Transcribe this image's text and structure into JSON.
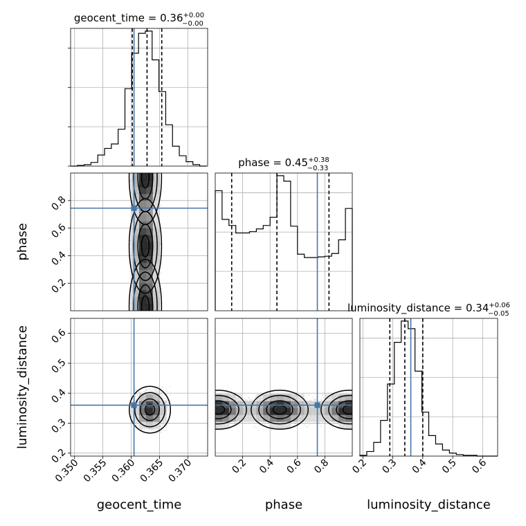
{
  "chart_data": {
    "type": "corner",
    "parameters": [
      "geocent_time",
      "phase",
      "luminosity_distance"
    ],
    "truths": [
      0.3605,
      0.745,
      0.36
    ],
    "truth_color": "#4477aa",
    "axis_ranges": {
      "geocent_time": [
        0.3493,
        0.3735
      ],
      "phase": [
        0.0,
        1.0
      ],
      "luminosity_distance": [
        0.19,
        0.65
      ]
    },
    "ticks": {
      "geocent_time": {
        "values": [
          0.35,
          0.355,
          0.36,
          0.365,
          0.37
        ],
        "labels": [
          "0.350",
          "0.355",
          "0.360",
          "0.365",
          "0.370"
        ]
      },
      "phase": {
        "values": [
          0.2,
          0.4,
          0.6,
          0.8
        ],
        "labels": [
          "0.2",
          "0.4",
          "0.6",
          "0.8"
        ]
      },
      "luminosity_distance": {
        "values": [
          0.2,
          0.3,
          0.4,
          0.5,
          0.6
        ],
        "labels": [
          "0.2",
          "0.3",
          "0.4",
          "0.5",
          "0.6"
        ]
      }
    },
    "titles": {
      "geocent_time": {
        "prefix": "geocent_time = 0.36",
        "up": "+0.00",
        "down": "−0.00"
      },
      "phase": {
        "prefix": "phase = 0.45",
        "up": "+0.38",
        "down": "−0.33"
      },
      "luminosity_distance": {
        "prefix": "luminosity_distance = 0.34",
        "up": "+0.06",
        "down": "−0.05"
      }
    },
    "xlabels": [
      "geocent_time",
      "phase",
      "luminosity_distance"
    ],
    "ylabels": [
      "phase",
      "luminosity_distance"
    ],
    "histograms": {
      "geocent_time": {
        "edges": [
          0.3493,
          0.3505,
          0.3517,
          0.3529,
          0.3541,
          0.3553,
          0.3565,
          0.3577,
          0.3589,
          0.3601,
          0.3613,
          0.3625,
          0.3637,
          0.3649,
          0.3661,
          0.3673,
          0.3685,
          0.3697,
          0.3709,
          0.3721,
          0.3733
        ],
        "counts": [
          0,
          1,
          2,
          5,
          15,
          24,
          30,
          50,
          105,
          153,
          180,
          183,
          144,
          101,
          56,
          27,
          14,
          6,
          2,
          0
        ],
        "quantiles": [
          0.3602,
          0.3628,
          0.3654
        ]
      },
      "phase": {
        "edges": [
          0.0,
          0.05,
          0.1,
          0.15,
          0.2,
          0.25,
          0.3,
          0.35,
          0.4,
          0.45,
          0.5,
          0.55,
          0.6,
          0.65,
          0.7,
          0.75,
          0.8,
          0.85,
          0.9,
          0.95,
          1.0
        ],
        "counts": [
          176,
          134,
          125,
          114,
          114,
          116,
          120,
          125,
          137,
          198,
          190,
          124,
          83,
          78,
          78,
          79,
          80,
          84,
          104,
          150
        ],
        "quantiles": [
          0.12,
          0.45,
          0.83
        ]
      },
      "luminosity_distance": {
        "edges": [
          0.19,
          0.213,
          0.236,
          0.259,
          0.282,
          0.305,
          0.328,
          0.351,
          0.374,
          0.397,
          0.42,
          0.443,
          0.466,
          0.489,
          0.512,
          0.535,
          0.558,
          0.581,
          0.604,
          0.627,
          0.65
        ],
        "counts": [
          1,
          6,
          18,
          47,
          95,
          150,
          178,
          168,
          112,
          58,
          27,
          16,
          8,
          4,
          2,
          1,
          1,
          0,
          0,
          0
        ],
        "quantiles": [
          0.29,
          0.34,
          0.4
        ]
      }
    },
    "density_2d": [
      {
        "x": "geocent_time",
        "y": "phase",
        "modes": [
          [
            0.3625,
            0.47
          ],
          [
            0.3625,
            0.03
          ],
          [
            0.3625,
            0.97
          ]
        ]
      },
      {
        "x": "geocent_time",
        "y": "luminosity_distance",
        "modes": [
          [
            0.3633,
            0.345
          ]
        ]
      },
      {
        "x": "phase",
        "y": "luminosity_distance",
        "modes": [
          [
            0.02,
            0.345
          ],
          [
            0.47,
            0.345
          ],
          [
            0.98,
            0.345
          ]
        ]
      }
    ],
    "grid": true,
    "legend": "none"
  }
}
